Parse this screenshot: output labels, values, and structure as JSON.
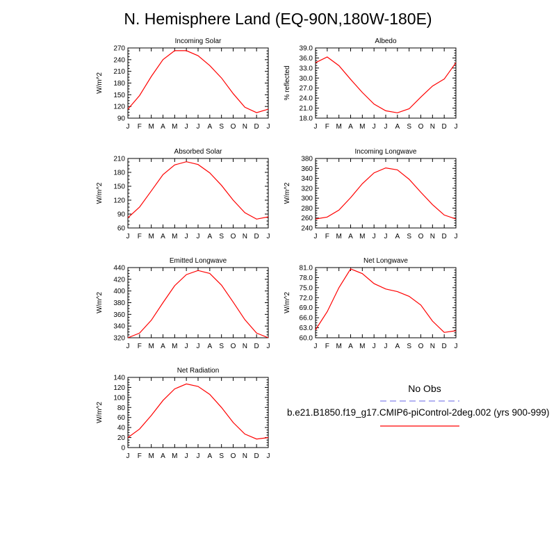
{
  "page": {
    "title": "N. Hemisphere Land (EQ-90N,180W-180E)"
  },
  "legend": {
    "obs_label": "No Obs",
    "obs_color": "#9999ee",
    "run_label": "b.e21.B1850.f19_g17.CMIP6-piControl-2deg.002 (yrs 900-999)",
    "run_color": "#ff0000"
  },
  "chart_data": [
    {
      "type": "line",
      "title": "Incoming Solar",
      "ylabel": "W/m^2",
      "categories": [
        "J",
        "F",
        "M",
        "A",
        "M",
        "J",
        "J",
        "A",
        "S",
        "O",
        "N",
        "D",
        "J"
      ],
      "ylim": [
        90,
        270
      ],
      "yticks": [
        90,
        120,
        150,
        180,
        210,
        240,
        270
      ],
      "ytick_labels": [
        "90",
        "120",
        "150",
        "180",
        "210",
        "240",
        "270"
      ],
      "series": [
        {
          "name": "b.e21.B1850.f19_g17.CMIP6-piControl-2deg.002 (yrs 900-999)",
          "values": [
            113,
            148,
            197,
            240,
            263,
            263,
            250,
            225,
            193,
            153,
            118,
            104,
            113
          ]
        }
      ]
    },
    {
      "type": "line",
      "title": "Albedo",
      "ylabel": "% reflected",
      "categories": [
        "J",
        "F",
        "M",
        "A",
        "M",
        "J",
        "J",
        "A",
        "S",
        "O",
        "N",
        "D",
        "J"
      ],
      "ylim": [
        18,
        39
      ],
      "yticks": [
        18,
        21,
        24,
        27,
        30,
        33,
        36,
        39
      ],
      "ytick_labels": [
        "18.0",
        "21.0",
        "24.0",
        "27.0",
        "30.0",
        "33.0",
        "36.0",
        "39.0"
      ],
      "series": [
        {
          "name": "b.e21.B1850.f19_g17.CMIP6-piControl-2deg.002 (yrs 900-999)",
          "values": [
            34.6,
            36.3,
            33.7,
            29.6,
            25.7,
            22.2,
            20.2,
            19.6,
            20.8,
            24.3,
            27.6,
            29.7,
            34.6
          ]
        }
      ]
    },
    {
      "type": "line",
      "title": "Absorbed Solar",
      "ylabel": "W/m^2",
      "categories": [
        "J",
        "F",
        "M",
        "A",
        "M",
        "J",
        "J",
        "A",
        "S",
        "O",
        "N",
        "D",
        "J"
      ],
      "ylim": [
        60,
        210
      ],
      "yticks": [
        60,
        90,
        120,
        150,
        180,
        210
      ],
      "ytick_labels": [
        "60",
        "90",
        "120",
        "150",
        "180",
        "210"
      ],
      "series": [
        {
          "name": "b.e21.B1850.f19_g17.CMIP6-piControl-2deg.002 (yrs 900-999)",
          "values": [
            82,
            105,
            140,
            175,
            196,
            203,
            197,
            179,
            152,
            120,
            93,
            79,
            84
          ]
        }
      ]
    },
    {
      "type": "line",
      "title": "Incoming Longwave",
      "ylabel": "W/m^2",
      "categories": [
        "J",
        "F",
        "M",
        "A",
        "M",
        "J",
        "J",
        "A",
        "S",
        "O",
        "N",
        "D",
        "J"
      ],
      "ylim": [
        240,
        380
      ],
      "yticks": [
        240,
        260,
        280,
        300,
        320,
        340,
        360,
        380
      ],
      "ytick_labels": [
        "240",
        "260",
        "280",
        "300",
        "320",
        "340",
        "360",
        "380"
      ],
      "series": [
        {
          "name": "b.e21.B1850.f19_g17.CMIP6-piControl-2deg.002 (yrs 900-999)",
          "values": [
            258,
            262,
            276,
            301,
            329,
            351,
            361,
            357,
            338,
            312,
            287,
            266,
            258
          ]
        }
      ]
    },
    {
      "type": "line",
      "title": "Emitted Longwave",
      "ylabel": "W/m^2",
      "categories": [
        "J",
        "F",
        "M",
        "A",
        "M",
        "J",
        "J",
        "A",
        "S",
        "O",
        "N",
        "D",
        "J"
      ],
      "ylim": [
        320,
        440
      ],
      "yticks": [
        320,
        340,
        360,
        380,
        400,
        420,
        440
      ],
      "ytick_labels": [
        "320",
        "340",
        "360",
        "380",
        "400",
        "420",
        "440"
      ],
      "series": [
        {
          "name": "b.e21.B1850.f19_g17.CMIP6-piControl-2deg.002 (yrs 900-999)",
          "values": [
            320,
            328,
            350,
            380,
            409,
            428,
            435,
            430,
            410,
            381,
            351,
            328,
            320
          ]
        }
      ]
    },
    {
      "type": "line",
      "title": "Net Longwave",
      "ylabel": "W/m^2",
      "categories": [
        "J",
        "F",
        "M",
        "A",
        "M",
        "J",
        "J",
        "A",
        "S",
        "O",
        "N",
        "D",
        "J"
      ],
      "ylim": [
        60,
        81
      ],
      "yticks": [
        60,
        63,
        66,
        69,
        72,
        75,
        78,
        81
      ],
      "ytick_labels": [
        "60.0",
        "63.0",
        "66.0",
        "69.0",
        "72.0",
        "75.0",
        "78.0",
        "81.0"
      ],
      "series": [
        {
          "name": "b.e21.B1850.f19_g17.CMIP6-piControl-2deg.002 (yrs 900-999)",
          "values": [
            62.4,
            67.8,
            75.0,
            80.6,
            79.2,
            76.2,
            74.6,
            73.8,
            72.4,
            69.8,
            65.0,
            61.6,
            62.1
          ]
        }
      ]
    },
    {
      "type": "line",
      "title": "Net Radiation",
      "ylabel": "W/m^2",
      "categories": [
        "J",
        "F",
        "M",
        "A",
        "M",
        "J",
        "J",
        "A",
        "S",
        "O",
        "N",
        "D",
        "J"
      ],
      "ylim": [
        0,
        140
      ],
      "yticks": [
        0,
        20,
        40,
        60,
        80,
        100,
        120,
        140
      ],
      "ytick_labels": [
        "0",
        "20",
        "40",
        "60",
        "80",
        "100",
        "120",
        "140"
      ],
      "series": [
        {
          "name": "b.e21.B1850.f19_g17.CMIP6-piControl-2deg.002 (yrs 900-999)",
          "values": [
            20,
            37,
            64,
            94,
            117,
            127,
            122,
            106,
            80,
            50,
            27,
            17,
            20
          ]
        }
      ]
    }
  ]
}
